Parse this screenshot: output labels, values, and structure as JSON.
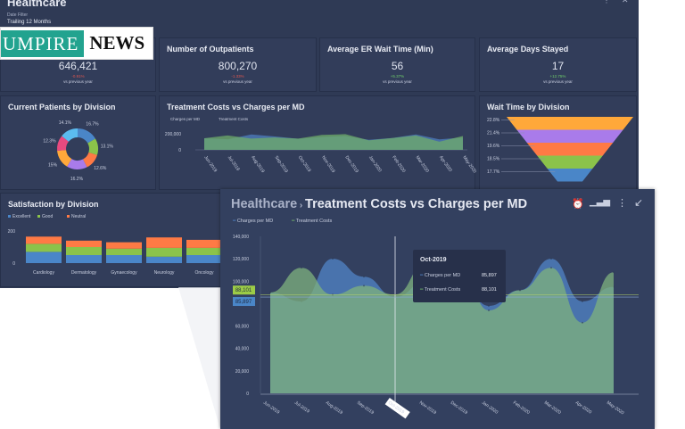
{
  "logo": {
    "part1": "UMPIRE",
    "part2": "NEWS"
  },
  "dashboard": {
    "title": "Healthcare",
    "date_filter_label": "Date Filter",
    "date_filter_value": "Trailing 12 Months",
    "kpis": [
      {
        "title": "",
        "value": "646,421",
        "change": "-0.91%",
        "change_color": "#e0574f",
        "note": "vs previous year"
      },
      {
        "title": "Number of Outpatients",
        "value": "800,270",
        "change": "-1.33%",
        "change_color": "#e0574f",
        "note": "vs previous year"
      },
      {
        "title": "Average ER Wait Time (Min)",
        "value": "56",
        "change": "+5.37%",
        "change_color": "#6fcf6a",
        "note": "vs previous year"
      },
      {
        "title": "Average Days Stayed",
        "value": "17",
        "change": "+12.75%",
        "change_color": "#6fcf6a",
        "note": "vs previous year"
      }
    ],
    "patients": {
      "title": "Current Patients by Division",
      "slices": [
        {
          "pct": 16.7,
          "label": "16.7%",
          "color": "#4a86c8"
        },
        {
          "pct": 13.1,
          "label": "13.1%",
          "color": "#8bc34a"
        },
        {
          "pct": 12.6,
          "label": "12.6%",
          "color": "#ff7a45"
        },
        {
          "pct": 16.2,
          "label": "16.2%",
          "color": "#a97bea"
        },
        {
          "pct": 15,
          "label": "15%",
          "color": "#ffa83a"
        },
        {
          "pct": 12.3,
          "label": "12.3%",
          "color": "#e84a7f"
        },
        {
          "pct": 14.1,
          "label": "14.1%",
          "color": "#5bbcf0"
        }
      ]
    },
    "mini_chart": {
      "title": "Treatment Costs vs Charges per MD",
      "legend": [
        "Charges per MD",
        "Treatment Costs"
      ],
      "y_ticks": [
        "200,000",
        "0"
      ]
    },
    "wait_time": {
      "title": "Wait Time by Division",
      "bands": [
        {
          "label": "22.8%",
          "color": "#ffa83a"
        },
        {
          "label": "21.4%",
          "color": "#a97bea"
        },
        {
          "label": "19.6%",
          "color": "#ff7a45"
        },
        {
          "label": "18.5%",
          "color": "#8bc34a"
        },
        {
          "label": "17.7%",
          "color": "#4a86c8"
        }
      ]
    },
    "satisfaction": {
      "title": "Satisfaction by Division",
      "legend": [
        {
          "name": "Excellent",
          "color": "#4a86c8"
        },
        {
          "name": "Good",
          "color": "#8bc34a"
        },
        {
          "name": "Neutral",
          "color": "#ff7a45"
        }
      ],
      "y_ticks": [
        "200",
        "0"
      ],
      "categories": [
        "Cardiology",
        "Dermatology",
        "Gynaecology",
        "Neurology",
        "Oncology"
      ],
      "excellent": [
        70,
        50,
        50,
        40,
        50
      ],
      "good": [
        50,
        50,
        40,
        55,
        45
      ],
      "neutral": [
        45,
        40,
        40,
        65,
        50
      ]
    }
  },
  "detail": {
    "breadcrumb": "Healthcare",
    "title": "Treatment Costs vs Charges per MD",
    "icons": [
      "alarm-icon",
      "chart-type-icon",
      "more-icon",
      "collapse-icon"
    ],
    "tooltip": {
      "month": "Oct-2019",
      "rows": [
        {
          "name": "Charges per MD",
          "value": "85,897"
        },
        {
          "name": "Treatment Costs",
          "value": "88,101"
        }
      ]
    },
    "badges": [
      "88,101",
      "85,897"
    ]
  },
  "chart_data": {
    "type": "area",
    "title": "Treatment Costs vs Charges per MD",
    "x": [
      "Jun-2019",
      "Jul-2019",
      "Aug-2019",
      "Sep-2019",
      "Oct-2019",
      "Nov-2019",
      "Dec-2019",
      "Jan-2020",
      "Feb-2020",
      "Mar-2020",
      "Apr-2020",
      "May-2020"
    ],
    "y_ticks": [
      "140,000",
      "120,000",
      "100,000",
      "60,000",
      "40,000",
      "20,000",
      "0"
    ],
    "ylim": [
      0,
      140000
    ],
    "grid": false,
    "legend": "top-left",
    "series": [
      {
        "name": "Charges per MD",
        "color": "#4f7fc0",
        "values": [
          90000,
          82000,
          120000,
          104000,
          85897,
          100000,
          108000,
          78000,
          92000,
          120000,
          82000,
          95000
        ]
      },
      {
        "name": "Treatment Costs",
        "color": "#6fae6a",
        "values": [
          90000,
          112000,
          88000,
          96000,
          88101,
          116000,
          122000,
          74000,
          92000,
          112000,
          63000,
          108000
        ]
      }
    ]
  }
}
